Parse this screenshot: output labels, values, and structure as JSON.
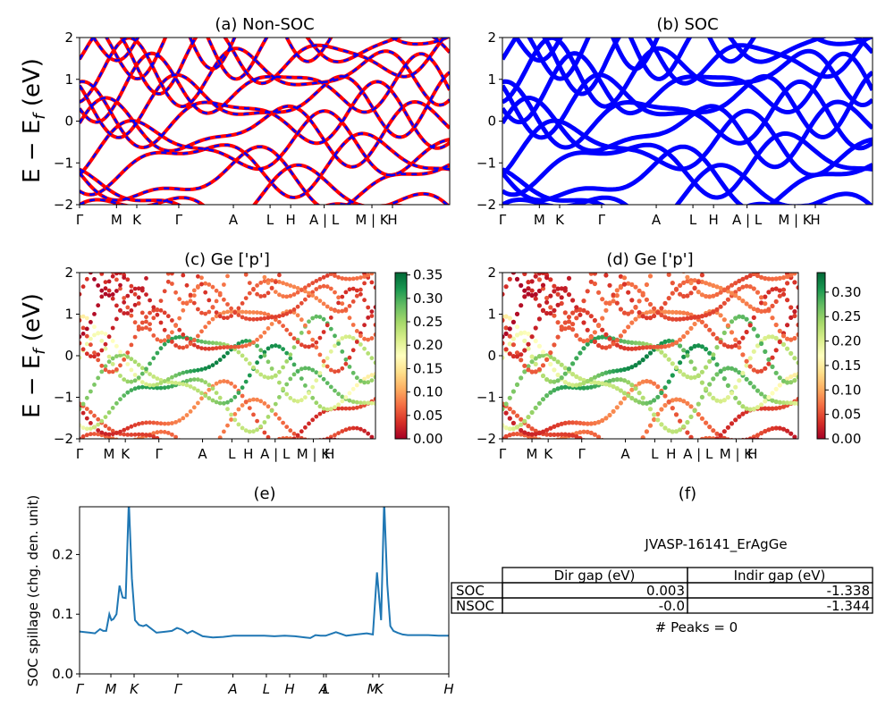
{
  "chart_data": [
    {
      "type": "line",
      "title": "(a) Non-SOC",
      "ylabel": "E − E_f (eV)",
      "ylim": [
        -2,
        2
      ],
      "y_ticks": [
        "2",
        "1",
        "0",
        "−1",
        "−2"
      ],
      "kpath_labels": [
        "Γ",
        "M",
        "K",
        "Γ",
        "A",
        "L",
        "H",
        "A | L",
        "M | K",
        "H"
      ],
      "series": [
        {
          "color": "#ff0000",
          "style": "solid"
        },
        {
          "color": "#0000ff",
          "style": "dashed"
        }
      ]
    },
    {
      "type": "line",
      "title": "(b) SOC",
      "ylim": [
        -2,
        2
      ],
      "y_ticks": [
        "2",
        "1",
        "0",
        "−1",
        "−2"
      ],
      "kpath_labels": [
        "Γ",
        "M",
        "K",
        "Γ",
        "A",
        "L",
        "H",
        "A | L",
        "M | K",
        "H"
      ],
      "series": [
        {
          "color": "#0000ff",
          "style": "solid"
        }
      ]
    },
    {
      "type": "scatter",
      "title": "(c)  Ge ['p']",
      "ylabel": "E − E_f (eV)",
      "ylim": [
        -2,
        2
      ],
      "y_ticks": [
        "2",
        "1",
        "0",
        "−1",
        "−2"
      ],
      "kpath_labels": [
        "Γ",
        "M",
        "K",
        "Γ",
        "A",
        "L",
        "H",
        "A | L",
        "M | K",
        "H"
      ],
      "colorbar": {
        "colormap": "RdYlGn",
        "ticks": [
          "0.35",
          "0.30",
          "0.25",
          "0.20",
          "0.15",
          "0.10",
          "0.05",
          "0.00"
        ],
        "range": [
          0,
          0.355
        ]
      }
    },
    {
      "type": "scatter",
      "title": "(d) Ge ['p']",
      "ylim": [
        -2,
        2
      ],
      "y_ticks": [
        "2",
        "1",
        "0",
        "−1",
        "−2"
      ],
      "kpath_labels": [
        "Γ",
        "M",
        "K",
        "Γ",
        "A",
        "L",
        "H",
        "A | L",
        "M | K",
        "H"
      ],
      "colorbar": {
        "colormap": "RdYlGn",
        "ticks": [
          "0.30",
          "0.25",
          "0.20",
          "0.15",
          "0.10",
          "0.05",
          "0.00"
        ],
        "range": [
          0,
          0.34
        ]
      }
    },
    {
      "type": "line",
      "title": "(e)",
      "ylabel": "SOC spillage (chg. den. unit)",
      "ylim": [
        0,
        0.28
      ],
      "y_ticks": [
        "0.2",
        "0.1",
        "0.0"
      ],
      "kpath_labels": [
        "Γ",
        "M",
        "K",
        "Γ",
        "A",
        "L",
        "H",
        "A",
        "L",
        "M",
        "K",
        "H"
      ],
      "series": [
        {
          "color": "#1f77b4",
          "x": [
            0,
            0.5,
            1,
            1.5,
            2,
            2.3,
            2.6,
            2.9,
            3.1,
            3.3,
            3.6,
            3.9,
            4.2,
            4.5,
            4.8,
            5.1,
            5.4,
            5.8,
            6.2,
            6.5,
            7.5,
            8,
            8.5,
            9,
            9.5,
            10,
            10.5,
            11,
            12,
            13,
            14,
            15,
            16,
            17,
            18,
            19,
            20,
            21,
            22,
            22.5,
            23,
            23.5,
            24,
            25,
            26,
            27,
            28,
            28.6,
            29,
            29.4,
            29.7,
            30,
            30.3,
            30.6,
            31,
            31.5,
            32,
            33,
            34,
            35,
            36
          ],
          "values": [
            0.071,
            0.07,
            0.069,
            0.068,
            0.075,
            0.072,
            0.072,
            0.1,
            0.09,
            0.092,
            0.1,
            0.148,
            0.128,
            0.127,
            0.29,
            0.16,
            0.09,
            0.082,
            0.08,
            0.082,
            0.069,
            0.07,
            0.071,
            0.072,
            0.077,
            0.074,
            0.068,
            0.072,
            0.063,
            0.061,
            0.062,
            0.064,
            0.064,
            0.064,
            0.064,
            0.063,
            0.064,
            0.063,
            0.061,
            0.06,
            0.065,
            0.064,
            0.064,
            0.07,
            0.064,
            0.066,
            0.068,
            0.066,
            0.17,
            0.09,
            0.29,
            0.15,
            0.08,
            0.072,
            0.069,
            0.066,
            0.065,
            0.065,
            0.065,
            0.064,
            0.064
          ]
        }
      ]
    }
  ],
  "panel_f": {
    "title": "(f)",
    "material": "JVASP-16141_ErAgGe",
    "table": {
      "headers": [
        "Dir gap (eV)",
        "Indir gap (eV)"
      ],
      "rows": [
        {
          "label": "SOC",
          "dir": "0.003",
          "indir": "-1.338"
        },
        {
          "label": "NSOC",
          "dir": "-0.0",
          "indir": "-1.344"
        }
      ]
    },
    "peaks": "# Peaks = 0"
  }
}
